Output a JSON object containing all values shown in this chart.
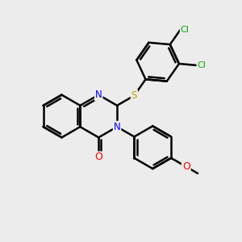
{
  "background_color": "#ececec",
  "bond_color": "#000000",
  "bond_width": 1.8,
  "atom_colors": {
    "N": "#0000ff",
    "O": "#ff0000",
    "S": "#b8a000",
    "Cl": "#00aa00"
  },
  "figsize": [
    3.0,
    3.0
  ],
  "dpi": 100,
  "xlim": [
    0,
    10
  ],
  "ylim": [
    0,
    10
  ]
}
